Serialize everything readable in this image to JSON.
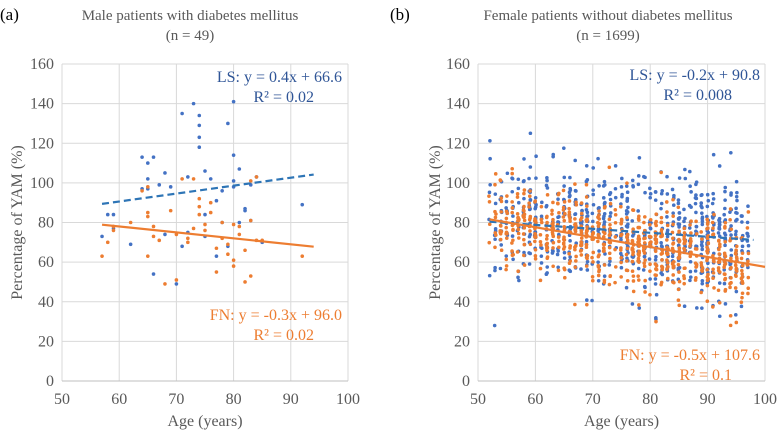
{
  "chart_data": [
    {
      "type": "scatter",
      "panel_label": "(a)",
      "title": "Male patients with diabetes mellitus",
      "subtitle": "(n = 49)",
      "xlabel": "Age (years)",
      "ylabel": "Percentage of YAM  (%)",
      "xlim": [
        50,
        100
      ],
      "ylim": [
        0,
        160
      ],
      "xticks": [
        50,
        60,
        70,
        80,
        90,
        100
      ],
      "yticks": [
        0,
        20,
        40,
        60,
        80,
        100,
        120,
        140,
        160
      ],
      "grid": true,
      "series": [
        {
          "name": "LS",
          "color": "#4472C4",
          "trend_color": "#2E75B6",
          "trend_style": "dashed",
          "trend": {
            "slope": 0.4,
            "intercept": 66.6,
            "x_range": [
              57,
              94
            ]
          },
          "annotation": {
            "equation": "LS: y = 0.4x + 66.6",
            "r2": "R² = 0.02",
            "placement": "top-right"
          },
          "points": [
            [
              57,
              73
            ],
            [
              58,
              84
            ],
            [
              59,
              84
            ],
            [
              59,
              77
            ],
            [
              64,
              113
            ],
            [
              65,
              110
            ],
            [
              65,
              102
            ],
            [
              65,
              97
            ],
            [
              66,
              54
            ],
            [
              67,
              99
            ],
            [
              68,
              105
            ],
            [
              69,
              98
            ],
            [
              70,
              49
            ],
            [
              71,
              135
            ],
            [
              72,
              75
            ],
            [
              73,
              140
            ],
            [
              74,
              134
            ],
            [
              74,
              129
            ],
            [
              74,
              123
            ],
            [
              74,
              118
            ],
            [
              75,
              106
            ],
            [
              75,
              84
            ],
            [
              75,
              73
            ],
            [
              76,
              102
            ],
            [
              77,
              63
            ],
            [
              77,
              91
            ],
            [
              78,
              80
            ],
            [
              79,
              130
            ],
            [
              80,
              141
            ],
            [
              80,
              114
            ],
            [
              80,
              101
            ],
            [
              80,
              98
            ],
            [
              81,
              107
            ],
            [
              82,
              87
            ],
            [
              82,
              86
            ],
            [
              83,
              99
            ],
            [
              92,
              89
            ],
            [
              62,
              69
            ],
            [
              68,
              74
            ],
            [
              71,
              68
            ],
            [
              79,
              68
            ],
            [
              81,
              80
            ],
            [
              83,
              81
            ],
            [
              85,
              70
            ],
            [
              66,
              113
            ],
            [
              72,
              103
            ],
            [
              78,
              96
            ],
            [
              84,
              103
            ],
            [
              64,
              97
            ]
          ]
        },
        {
          "name": "FN",
          "color": "#ED7D31",
          "trend_color": "#ED7D31",
          "trend_style": "solid",
          "trend": {
            "slope": -0.3,
            "intercept": 96.0,
            "x_range": [
              57,
              94
            ]
          },
          "annotation": {
            "equation": "FN: y = -0.3x + 96.0",
            "r2": "R² = 0.02",
            "placement": "bottom-right"
          },
          "points": [
            [
              57,
              63
            ],
            [
              58,
              70
            ],
            [
              59,
              76
            ],
            [
              59,
              78
            ],
            [
              64,
              96
            ],
            [
              65,
              98
            ],
            [
              65,
              85
            ],
            [
              65,
              83
            ],
            [
              65,
              63
            ],
            [
              66,
              73
            ],
            [
              67,
              71
            ],
            [
              68,
              49
            ],
            [
              69,
              86
            ],
            [
              70,
              51
            ],
            [
              71,
              102
            ],
            [
              72,
              70
            ],
            [
              73,
              102
            ],
            [
              74,
              92
            ],
            [
              74,
              84
            ],
            [
              75,
              79
            ],
            [
              75,
              76
            ],
            [
              76,
              85
            ],
            [
              77,
              55
            ],
            [
              77,
              67
            ],
            [
              78,
              72
            ],
            [
              79,
              64
            ],
            [
              80,
              58
            ],
            [
              80,
              61
            ],
            [
              81,
              74
            ],
            [
              82,
              66
            ],
            [
              82,
              50
            ],
            [
              83,
              53
            ],
            [
              83,
              101
            ],
            [
              84,
              103
            ],
            [
              84,
              71
            ],
            [
              92,
              63
            ],
            [
              62,
              80
            ],
            [
              66,
              78
            ],
            [
              70,
              74
            ],
            [
              72,
              72
            ],
            [
              74,
              88
            ],
            [
              76,
              90
            ],
            [
              78,
              80
            ],
            [
              80,
              79
            ],
            [
              81,
              78
            ],
            [
              83,
              81
            ],
            [
              79,
              69
            ],
            [
              85,
              71
            ],
            [
              73,
              77
            ]
          ]
        }
      ]
    },
    {
      "type": "scatter",
      "panel_label": "(b)",
      "title": "Female patients without diabetes mellitus",
      "subtitle": "(n = 1699)",
      "xlabel": "Age (years)",
      "ylabel": "Percentage of YAM  (%)",
      "xlim": [
        50,
        100
      ],
      "ylim": [
        0,
        160
      ],
      "xticks": [
        50,
        60,
        70,
        80,
        90,
        100
      ],
      "yticks": [
        0,
        20,
        40,
        60,
        80,
        100,
        120,
        140,
        160
      ],
      "grid": true,
      "series": [
        {
          "name": "LS",
          "color": "#4472C4",
          "trend_color": "#2E75B6",
          "trend_style": "dashed",
          "trend": {
            "slope": -0.2,
            "intercept": 90.8,
            "x_range": [
              52,
              98
            ]
          },
          "annotation": {
            "equation": "LS: y = -0.2x + 90.8",
            "r2": "R² = 0.008",
            "placement": "top-right"
          },
          "distribution": {
            "x_range": [
              52,
              97
            ],
            "y_mean_at_x": "trend",
            "y_sd": 15,
            "approx_points": 1699
          }
        },
        {
          "name": "FN",
          "color": "#ED7D31",
          "trend_color": "#ED7D31",
          "trend_style": "solid",
          "trend": {
            "slope": -0.5,
            "intercept": 107.6,
            "x_range": [
              52,
              100
            ]
          },
          "annotation": {
            "equation": "FN: y = -0.5x + 107.6",
            "r2": "R² = 0.1",
            "placement": "bottom-right"
          },
          "distribution": {
            "x_range": [
              52,
              97
            ],
            "y_mean_at_x": "trend",
            "y_sd": 11,
            "approx_points": 1699
          }
        }
      ]
    }
  ]
}
